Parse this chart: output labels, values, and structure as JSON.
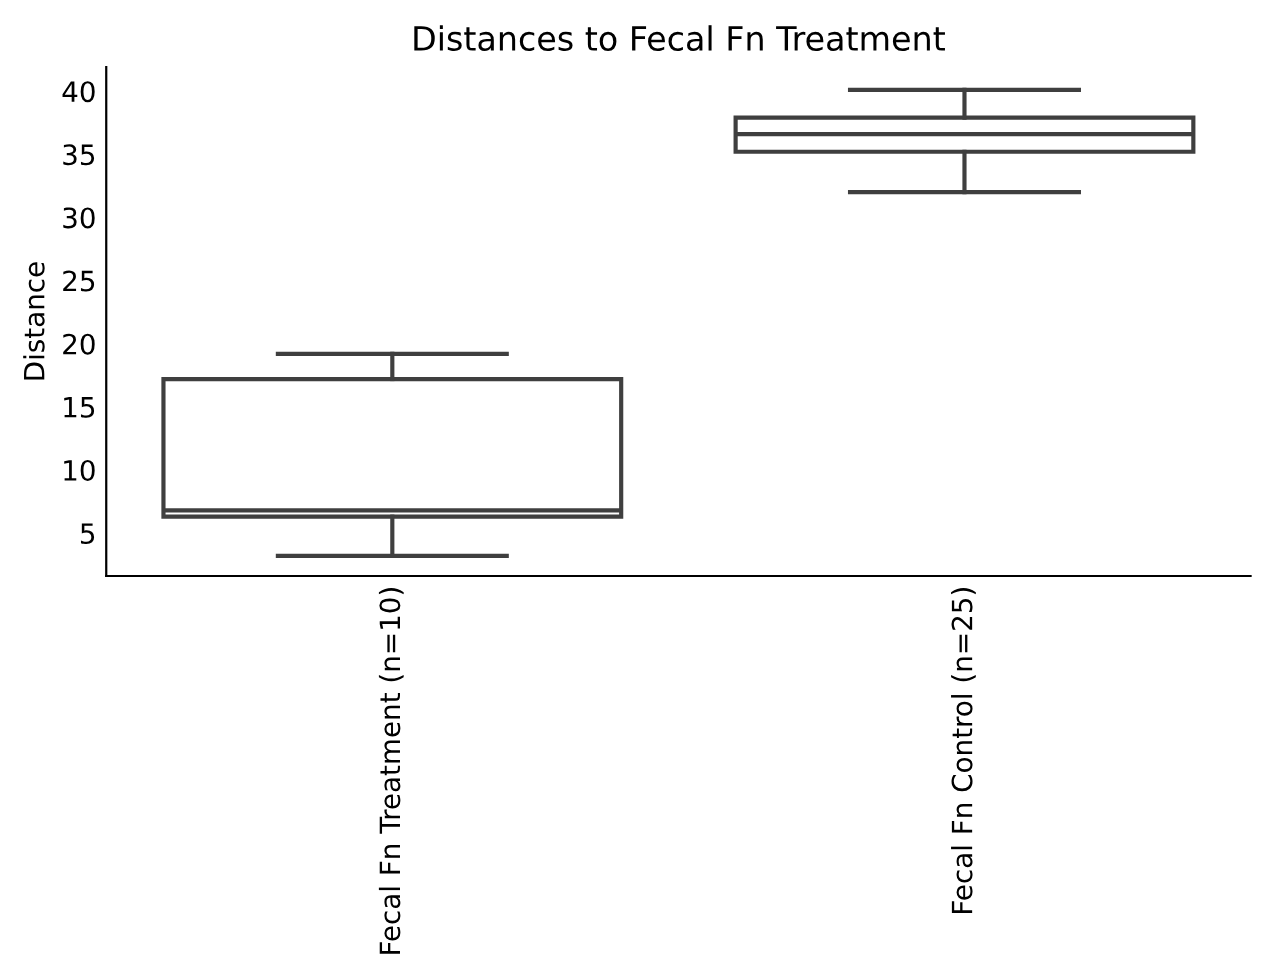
{
  "chart_data": {
    "type": "box",
    "title": "Distances to Fecal Fn Treatment",
    "ylabel": "Distance",
    "categories": [
      "Fecal Fn Treatment (n=10)",
      "Fecal Fn Control (n=25)"
    ],
    "boxes": [
      {
        "low": 3.2,
        "q1": 6.3,
        "median": 6.8,
        "q3": 17.2,
        "high": 19.2
      },
      {
        "low": 32.0,
        "q1": 35.2,
        "median": 36.6,
        "q3": 37.9,
        "high": 40.1
      }
    ],
    "color": "#ffffff",
    "ylim": [
      1.6,
      41.9
    ],
    "yticks": [
      5,
      10,
      15,
      20,
      25,
      30,
      35,
      40
    ],
    "grid": false
  }
}
